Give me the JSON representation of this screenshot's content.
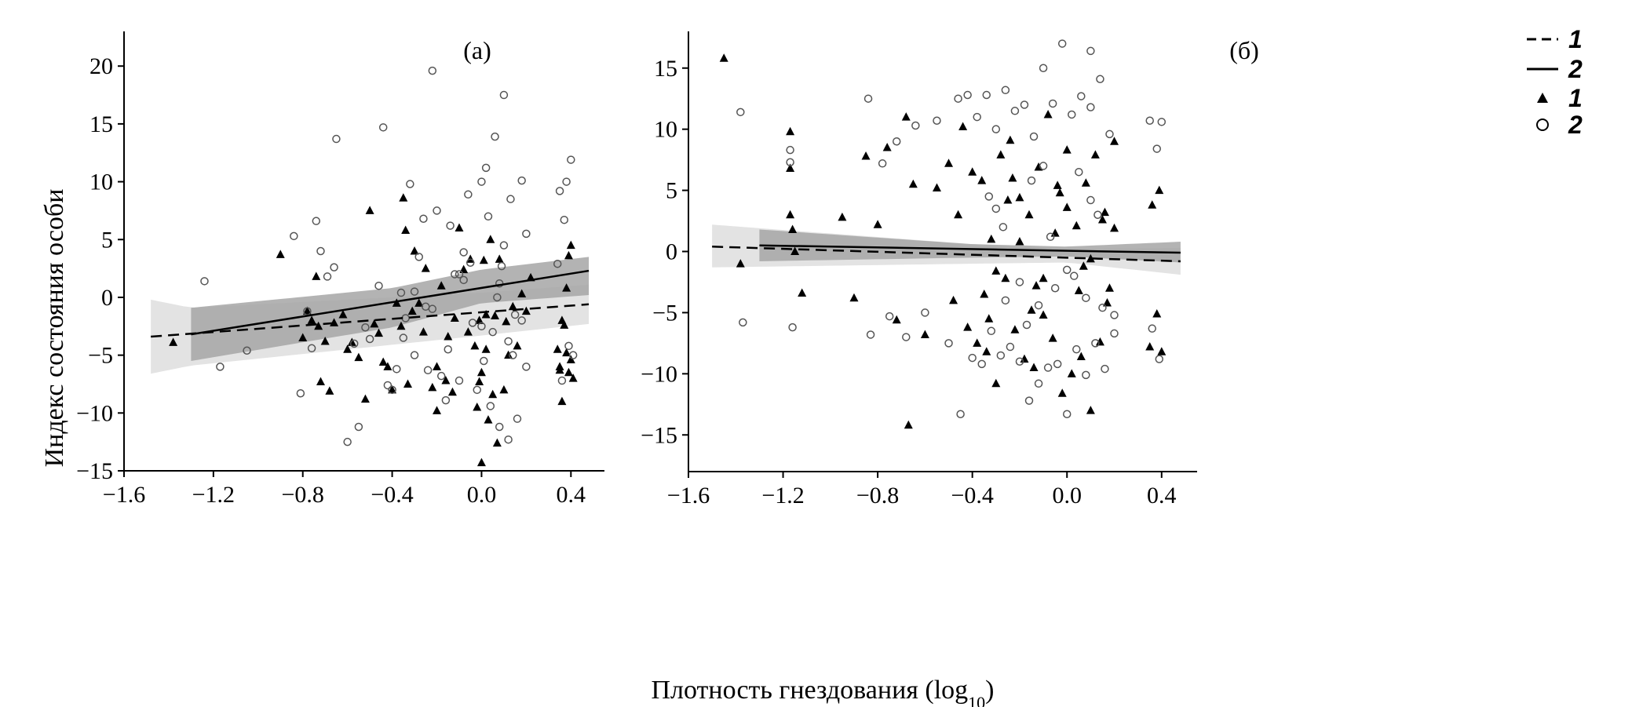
{
  "figure": {
    "ylabel": "Индекс состояния особи",
    "xlabel_main": "Плотность гнездования (log",
    "xlabel_sub": "10",
    "xlabel_close": ")"
  },
  "legend": [
    {
      "key": "1",
      "kind": "line",
      "style": "dashed",
      "label": "1"
    },
    {
      "key": "2",
      "kind": "line",
      "style": "solid",
      "label": "2"
    },
    {
      "key": "1",
      "kind": "marker",
      "style": "filled-triangle",
      "label": "1"
    },
    {
      "key": "2",
      "kind": "marker",
      "style": "open-circle",
      "label": "2"
    }
  ],
  "chart_data": [
    {
      "type": "scatter",
      "panel_label": "(а)",
      "xlim": [
        -1.6,
        0.55
      ],
      "ylim": [
        -15,
        23
      ],
      "xticks": [
        -1.6,
        -1.2,
        -0.8,
        -0.4,
        0.0,
        0.4
      ],
      "xtick_labels": [
        "−1.6",
        "−1.2",
        "−0.8",
        "−0.4",
        "0.0",
        "0.4"
      ],
      "yticks": [
        -15,
        -10,
        -5,
        0,
        5,
        10,
        15,
        20
      ],
      "ytick_labels": [
        "−15",
        "−10",
        "−5",
        "0",
        "5",
        "10",
        "15",
        "20"
      ],
      "fits": [
        {
          "group": "1",
          "style": "dashed",
          "x": [
            -1.48,
            0.48
          ],
          "y": [
            -3.4,
            -0.6
          ],
          "ci_x": [
            -1.48,
            -1.3,
            0.0,
            0.48
          ],
          "ci_lo": [
            -6.6,
            -5.9,
            -3.3,
            -2.3
          ],
          "ci_hi": [
            -0.2,
            -0.9,
            0.4,
            1.1
          ]
        },
        {
          "group": "2",
          "style": "solid",
          "x": [
            -1.3,
            0.48
          ],
          "y": [
            -3.2,
            2.3
          ],
          "ci_x": [
            -1.3,
            -0.4,
            0.0,
            0.48
          ],
          "ci_lo": [
            -5.5,
            -2.6,
            -0.5,
            0.2
          ],
          "ci_hi": [
            -0.9,
            0.8,
            2.4,
            3.5
          ]
        }
      ],
      "series": [
        {
          "name": "1",
          "marker": "filled-triangle",
          "x": [
            -1.38,
            -0.9,
            -0.8,
            -0.78,
            -0.76,
            -0.74,
            -0.73,
            -0.72,
            -0.7,
            -0.68,
            -0.66,
            -0.62,
            -0.6,
            -0.58,
            -0.55,
            -0.52,
            -0.5,
            -0.48,
            -0.46,
            -0.44,
            -0.42,
            -0.4,
            -0.38,
            -0.36,
            -0.35,
            -0.34,
            -0.33,
            -0.31,
            -0.3,
            -0.28,
            -0.26,
            -0.25,
            -0.22,
            -0.2,
            -0.18,
            -0.16,
            -0.15,
            -0.13,
            -0.12,
            -0.1,
            -0.08,
            -0.06,
            -0.05,
            -0.03,
            -0.02,
            -0.01,
            0.0,
            0.0,
            0.01,
            0.02,
            0.03,
            0.04,
            0.05,
            0.06,
            0.07,
            0.08,
            0.1,
            0.11,
            0.12,
            0.14,
            0.16,
            0.18,
            0.2,
            0.22,
            0.34,
            0.35,
            0.36,
            0.37,
            0.38,
            0.39,
            0.4,
            0.41,
            0.35,
            0.38,
            0.4,
            0.36,
            0.39,
            -0.01,
            0.02,
            -0.2
          ],
          "y": [
            -3.9,
            3.7,
            -3.5,
            -1.2,
            -2.0,
            1.8,
            -2.5,
            -7.3,
            -3.8,
            -8.1,
            -2.2,
            -1.5,
            -4.5,
            -3.9,
            -5.2,
            -8.8,
            7.5,
            -2.3,
            -3.1,
            -5.6,
            -6.0,
            -8.0,
            -0.5,
            -2.5,
            8.6,
            5.8,
            -7.5,
            -1.2,
            4.0,
            -0.5,
            -3.0,
            2.5,
            -7.8,
            -9.8,
            1.0,
            -7.2,
            -3.4,
            -8.2,
            -1.8,
            6.0,
            2.4,
            -3.0,
            3.3,
            -4.2,
            -9.5,
            -7.3,
            -14.3,
            -6.5,
            3.2,
            -4.5,
            -10.6,
            5.0,
            -8.4,
            -1.6,
            -12.6,
            3.3,
            -8.0,
            -2.1,
            -5.0,
            -0.8,
            -4.2,
            0.3,
            -1.2,
            1.7,
            -4.5,
            -6.3,
            -9.0,
            -2.4,
            0.8,
            3.6,
            4.5,
            -7.0,
            -6.0,
            -4.8,
            -5.4,
            -2.0,
            -6.5,
            -2.0,
            -1.5,
            -6.0
          ]
        },
        {
          "name": "2",
          "marker": "open-circle",
          "x": [
            -1.24,
            -1.17,
            -1.05,
            -0.84,
            -0.81,
            -0.78,
            -0.76,
            -0.74,
            -0.72,
            -0.69,
            -0.66,
            -0.65,
            -0.6,
            -0.57,
            -0.55,
            -0.52,
            -0.5,
            -0.46,
            -0.44,
            -0.42,
            -0.4,
            -0.38,
            -0.36,
            -0.34,
            -0.32,
            -0.3,
            -0.28,
            -0.26,
            -0.24,
            -0.22,
            -0.2,
            -0.18,
            -0.16,
            -0.14,
            -0.12,
            -0.1,
            -0.08,
            -0.06,
            -0.04,
            -0.02,
            0.0,
            0.02,
            0.04,
            0.06,
            0.08,
            0.1,
            0.12,
            0.14,
            0.16,
            0.18,
            0.2,
            0.35,
            0.36,
            0.38,
            0.4,
            0.41,
            0.34,
            0.37,
            0.39,
            -0.22,
            0.08,
            0.05,
            -0.3,
            -0.1,
            0.0,
            0.1,
            0.15,
            -0.05,
            0.12,
            0.2,
            -0.25,
            -0.35,
            0.03,
            0.18,
            0.07,
            -0.15,
            0.13,
            -0.08,
            0.01,
            0.09
          ],
          "y": [
            1.4,
            -6.0,
            -4.6,
            5.3,
            -8.3,
            -1.2,
            -4.4,
            6.6,
            4.0,
            1.8,
            2.6,
            13.7,
            -12.5,
            -4.0,
            -11.2,
            -2.6,
            -3.6,
            1.0,
            14.7,
            -7.6,
            -8.0,
            -6.2,
            0.4,
            -1.8,
            9.8,
            -5.0,
            3.5,
            6.8,
            -6.3,
            19.6,
            7.5,
            -6.8,
            -8.9,
            6.2,
            2.0,
            -7.2,
            3.9,
            8.9,
            -2.2,
            -8.0,
            10.0,
            11.2,
            -9.4,
            13.9,
            -11.2,
            17.5,
            -12.3,
            -5.0,
            -10.5,
            10.1,
            -6.0,
            9.2,
            -7.2,
            10.0,
            11.9,
            -5.0,
            2.9,
            6.7,
            -4.2,
            -1.0,
            1.2,
            -3.0,
            0.5,
            2.0,
            -2.5,
            4.5,
            -1.5,
            3.0,
            -3.8,
            5.5,
            -0.8,
            -3.5,
            7.0,
            -2.0,
            0.0,
            -4.5,
            8.5,
            1.5,
            -5.5,
            2.7
          ]
        }
      ]
    },
    {
      "type": "scatter",
      "panel_label": "(б)",
      "xlim": [
        -1.6,
        0.55
      ],
      "ylim": [
        -18,
        18
      ],
      "xticks": [
        -1.6,
        -1.2,
        -0.8,
        -0.4,
        0.0,
        0.4
      ],
      "xtick_labels": [
        "−1.6",
        "−1.2",
        "−0.8",
        "−0.4",
        "0.0",
        "0.4"
      ],
      "yticks": [
        -15,
        -10,
        -5,
        0,
        5,
        10,
        15
      ],
      "ytick_labels": [
        "−15",
        "−10",
        "−5",
        "0",
        "5",
        "10",
        "15"
      ],
      "fits": [
        {
          "group": "1",
          "style": "dashed",
          "x": [
            -1.5,
            0.48
          ],
          "y": [
            0.4,
            -0.8
          ],
          "ci_x": [
            -1.5,
            -0.4,
            0.0,
            0.48
          ],
          "ci_lo": [
            -1.3,
            -1.0,
            -0.9,
            -1.9
          ],
          "ci_hi": [
            2.2,
            0.6,
            0.2,
            0.3
          ]
        },
        {
          "group": "2",
          "style": "solid",
          "x": [
            -1.3,
            0.48
          ],
          "y": [
            0.5,
            -0.1
          ],
          "ci_x": [
            -1.3,
            -0.4,
            0.0,
            0.48
          ],
          "ci_lo": [
            -0.8,
            -0.5,
            -0.4,
            -0.9
          ],
          "ci_hi": [
            1.8,
            0.6,
            0.4,
            0.8
          ]
        }
      ],
      "series": [
        {
          "name": "1",
          "marker": "filled-triangle",
          "x": [
            -1.45,
            -1.38,
            -1.17,
            -1.17,
            -1.17,
            -1.16,
            -1.15,
            -1.12,
            -0.95,
            -0.9,
            -0.85,
            -0.8,
            -0.76,
            -0.72,
            -0.68,
            -0.67,
            -0.65,
            -0.6,
            -0.55,
            -0.5,
            -0.48,
            -0.46,
            -0.44,
            -0.42,
            -0.4,
            -0.38,
            -0.36,
            -0.34,
            -0.32,
            -0.3,
            -0.28,
            -0.26,
            -0.24,
            -0.22,
            -0.2,
            -0.18,
            -0.16,
            -0.14,
            -0.12,
            -0.1,
            -0.08,
            -0.06,
            -0.04,
            -0.02,
            0.0,
            0.02,
            0.04,
            0.06,
            0.08,
            0.1,
            0.12,
            0.14,
            0.16,
            0.18,
            0.2,
            0.35,
            0.36,
            0.38,
            0.39,
            0.4,
            -0.35,
            -0.25,
            -0.15,
            -0.05,
            0.05,
            0.15,
            -0.3,
            -0.2,
            -0.1,
            0.0,
            0.1,
            0.2,
            -0.33,
            -0.23,
            -0.13,
            -0.03,
            0.07,
            0.17
          ],
          "y": [
            15.8,
            -1.0,
            9.8,
            6.8,
            3.0,
            1.8,
            0.0,
            -3.4,
            2.8,
            -3.8,
            7.8,
            2.2,
            8.5,
            -5.6,
            11.0,
            -14.2,
            5.5,
            -6.8,
            5.2,
            7.2,
            -4.0,
            3.0,
            10.2,
            -6.2,
            6.5,
            -7.5,
            5.8,
            -8.2,
            1.0,
            -10.8,
            7.9,
            -2.2,
            9.1,
            -6.4,
            4.4,
            -8.8,
            3.0,
            -9.5,
            6.9,
            -5.2,
            11.2,
            -7.1,
            5.4,
            -11.6,
            8.3,
            -10.0,
            2.1,
            -8.6,
            5.6,
            -13.0,
            7.9,
            -7.4,
            3.2,
            -3.0,
            9.0,
            -7.8,
            3.8,
            -5.1,
            5.0,
            -8.2,
            -3.5,
            4.2,
            -4.8,
            1.5,
            -3.2,
            2.6,
            -1.6,
            0.8,
            -2.2,
            3.6,
            -0.6,
            1.9,
            -5.5,
            6.0,
            -2.8,
            4.8,
            -1.2,
            -4.2
          ]
        },
        {
          "name": "2",
          "marker": "open-circle",
          "x": [
            -1.38,
            -1.37,
            -1.17,
            -1.16,
            -1.17,
            -0.84,
            -0.83,
            -0.78,
            -0.75,
            -0.72,
            -0.68,
            -0.64,
            -0.6,
            -0.55,
            -0.5,
            -0.46,
            -0.45,
            -0.42,
            -0.4,
            -0.38,
            -0.36,
            -0.34,
            -0.32,
            -0.3,
            -0.28,
            -0.26,
            -0.24,
            -0.22,
            -0.2,
            -0.18,
            -0.16,
            -0.14,
            -0.12,
            -0.1,
            -0.08,
            -0.06,
            -0.04,
            -0.02,
            0.0,
            0.02,
            0.04,
            0.06,
            0.08,
            0.1,
            0.1,
            0.12,
            0.14,
            0.16,
            0.18,
            0.2,
            0.35,
            0.36,
            0.38,
            0.39,
            0.4,
            -0.33,
            -0.26,
            -0.15,
            -0.05,
            0.05,
            0.15,
            -0.3,
            -0.2,
            -0.1,
            0.0,
            0.1,
            0.2,
            -0.27,
            -0.17,
            -0.07,
            0.03,
            0.13,
            0.08,
            -0.12
          ],
          "y": [
            11.4,
            -5.8,
            8.3,
            -6.2,
            7.3,
            12.5,
            -6.8,
            7.2,
            -5.3,
            9.0,
            -7.0,
            10.3,
            -5.0,
            10.7,
            -7.5,
            12.5,
            -13.3,
            12.8,
            -8.7,
            11.0,
            -9.2,
            12.8,
            -6.5,
            10.0,
            -8.5,
            13.2,
            -7.8,
            11.5,
            -9.0,
            12.0,
            -12.2,
            9.4,
            -10.8,
            15.0,
            -9.5,
            12.1,
            -9.2,
            17.0,
            -13.3,
            11.2,
            -8.0,
            12.7,
            -10.1,
            16.4,
            11.8,
            -7.5,
            14.1,
            -9.6,
            9.6,
            -6.7,
            10.7,
            -6.3,
            8.4,
            -8.8,
            10.6,
            4.5,
            -4.0,
            5.8,
            -3.0,
            6.5,
            -4.6,
            3.5,
            -2.5,
            7.0,
            -1.5,
            4.2,
            -5.2,
            2.0,
            -6.0,
            1.2,
            -2.0,
            3.0,
            -3.8,
            -4.4
          ]
        }
      ]
    }
  ]
}
